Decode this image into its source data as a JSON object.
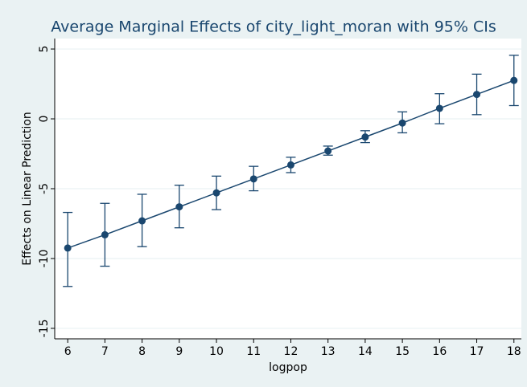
{
  "chart_data": {
    "type": "errorbar-line",
    "title": "Average Marginal Effects of city_light_moran with 95% CIs",
    "x_label": "logpop",
    "y_label": "Effects on Linear Prediction",
    "x": [
      6,
      7,
      8,
      9,
      10,
      11,
      12,
      13,
      14,
      15,
      16,
      17,
      18
    ],
    "series": [
      {
        "color": "#1a476f",
        "values": [
          -9.25,
          -8.3,
          -7.3,
          -6.3,
          -5.3,
          -4.3,
          -3.3,
          -2.3,
          -1.3,
          -0.3,
          0.75,
          1.75,
          2.75
        ],
        "lower": [
          -12,
          -10.55,
          -9.15,
          -7.8,
          -6.5,
          -5.15,
          -3.85,
          -2.6,
          -1.7,
          -1.0,
          -0.35,
          0.3,
          0.95
        ],
        "upper": [
          -6.7,
          -6.05,
          -5.4,
          -4.75,
          -4.1,
          -3.4,
          -2.75,
          -1.95,
          -0.85,
          0.5,
          1.8,
          3.2,
          4.55
        ]
      }
    ],
    "xlim": [
      5.65,
      18.2
    ],
    "ylim": [
      -15.75,
      5.75
    ],
    "xticks": [
      6,
      7,
      8,
      9,
      10,
      11,
      12,
      13,
      14,
      15,
      16,
      17,
      18
    ],
    "yticks": [
      -15,
      -10,
      -5,
      0,
      5
    ],
    "grid": true
  }
}
